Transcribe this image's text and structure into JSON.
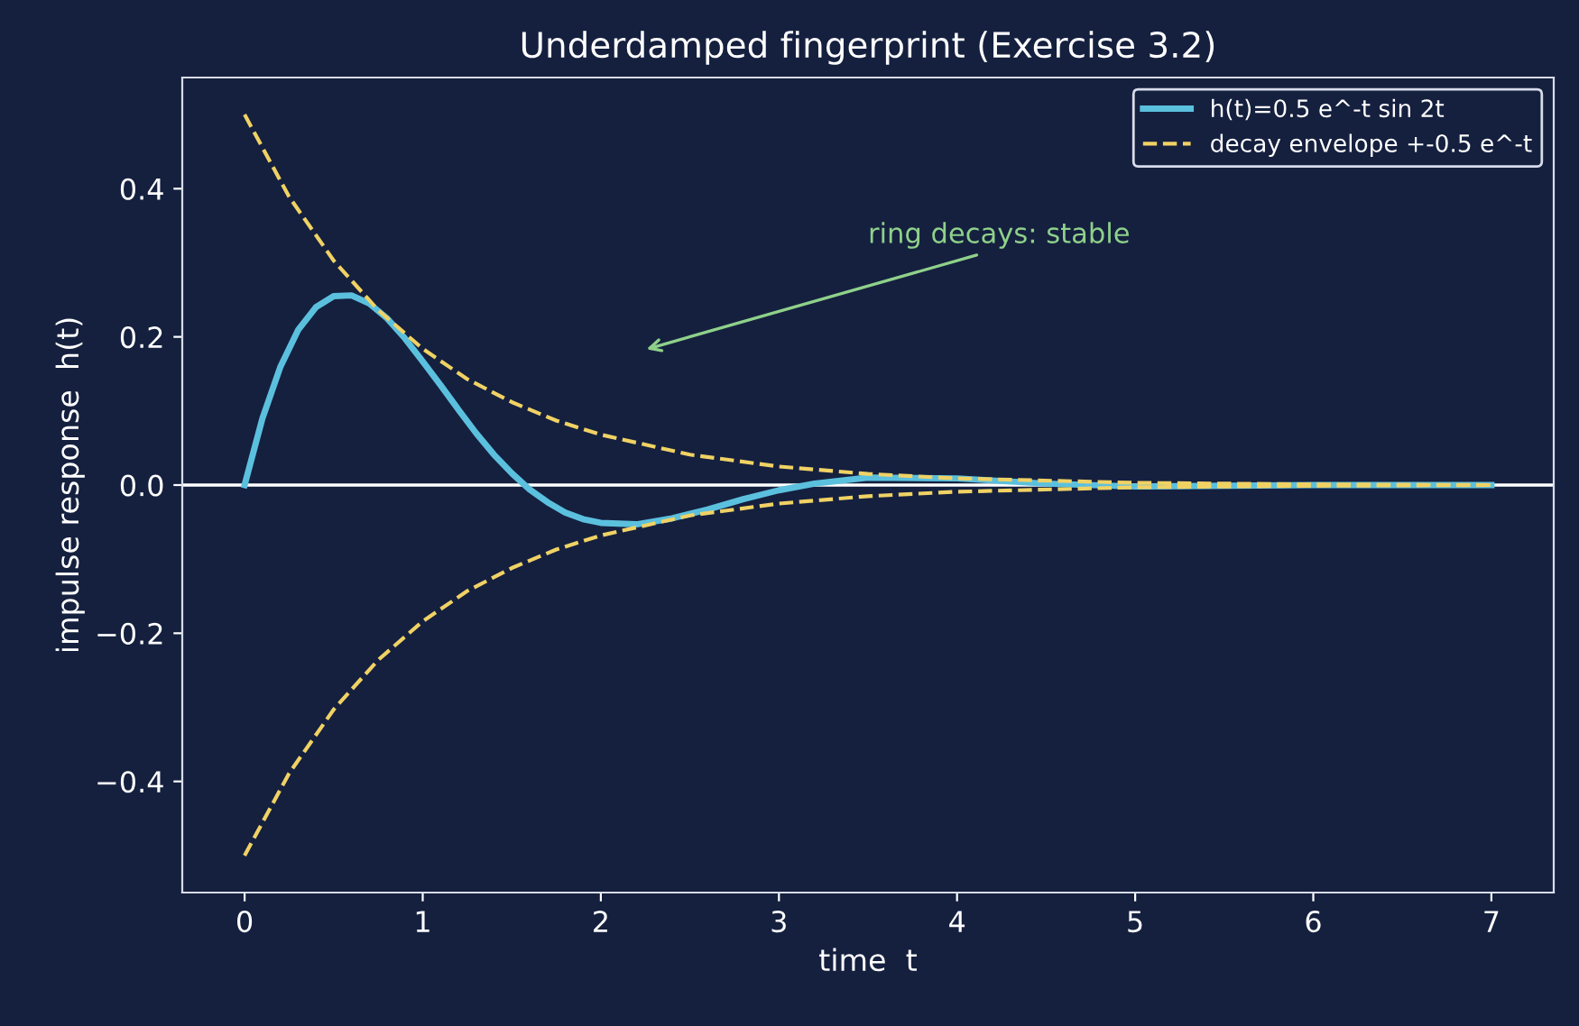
{
  "chart_data": {
    "type": "line",
    "title": "Underdamped fingerprint (Exercise 3.2)",
    "xlabel": "time  t",
    "ylabel": "impulse response  h(t)",
    "xlim": [
      -0.35,
      7.35
    ],
    "ylim": [
      -0.55,
      0.55
    ],
    "xticks": [
      0,
      1,
      2,
      3,
      4,
      5,
      6,
      7
    ],
    "yticks": [
      {
        "value": -0.4,
        "label": "−0.4"
      },
      {
        "value": -0.2,
        "label": "−0.2"
      },
      {
        "value": 0,
        "label": "0.0"
      },
      {
        "value": 0.2,
        "label": "0.2"
      },
      {
        "value": 0.4,
        "label": "0.4"
      }
    ],
    "grid": false,
    "legend": "top right",
    "series": [
      {
        "name": "h(t)=0.5 e^-t sin 2t",
        "color": "#5bc0de",
        "line_style": "solid",
        "x": [
          0,
          0.1,
          0.2,
          0.3,
          0.4,
          0.5,
          0.6,
          0.7,
          0.8,
          0.9,
          1.0,
          1.1,
          1.2,
          1.3,
          1.4,
          1.5,
          1.6,
          1.7,
          1.8,
          1.9,
          2.0,
          2.2,
          2.4,
          2.6,
          2.8,
          3.0,
          3.2,
          3.5,
          4.0,
          4.5,
          5,
          6,
          7
        ],
        "values": [
          0,
          0.09,
          0.159,
          0.209,
          0.24,
          0.255,
          0.256,
          0.245,
          0.225,
          0.198,
          0.167,
          0.135,
          0.102,
          0.07,
          0.041,
          0.016,
          -0.006,
          -0.023,
          -0.037,
          -0.046,
          -0.051,
          -0.053,
          -0.045,
          -0.033,
          -0.019,
          -0.007,
          0.002,
          0.01,
          0.009,
          0.002,
          -0.002,
          0,
          0
        ]
      },
      {
        "name": "decay envelope +-0.5 e^-t",
        "color": "#f0d264",
        "line_style": "dashed",
        "x": [
          0,
          0.25,
          0.5,
          0.75,
          1,
          1.25,
          1.5,
          1.75,
          2,
          2.5,
          3,
          3.5,
          4,
          5,
          6,
          7
        ],
        "values": [
          0.5,
          0.389,
          0.303,
          0.236,
          0.184,
          0.143,
          0.112,
          0.087,
          0.068,
          0.041,
          0.025,
          0.015,
          0.009,
          0.003,
          0.001,
          0
        ]
      },
      {
        "color": "#f0d264",
        "line_style": "dashed",
        "x": [
          0,
          0.25,
          0.5,
          0.75,
          1,
          1.25,
          1.5,
          1.75,
          2,
          2.5,
          3,
          3.5,
          4,
          5,
          6,
          7
        ],
        "values": [
          -0.5,
          -0.389,
          -0.303,
          -0.236,
          -0.184,
          -0.143,
          -0.112,
          -0.087,
          -0.068,
          -0.041,
          -0.025,
          -0.015,
          -0.009,
          -0.003,
          -0.001,
          0
        ]
      }
    ],
    "ref_lines": [
      {
        "axis": "y",
        "value": 0,
        "color": "#ffffff"
      }
    ],
    "annotations": [
      "ring decays: stable"
    ]
  }
}
